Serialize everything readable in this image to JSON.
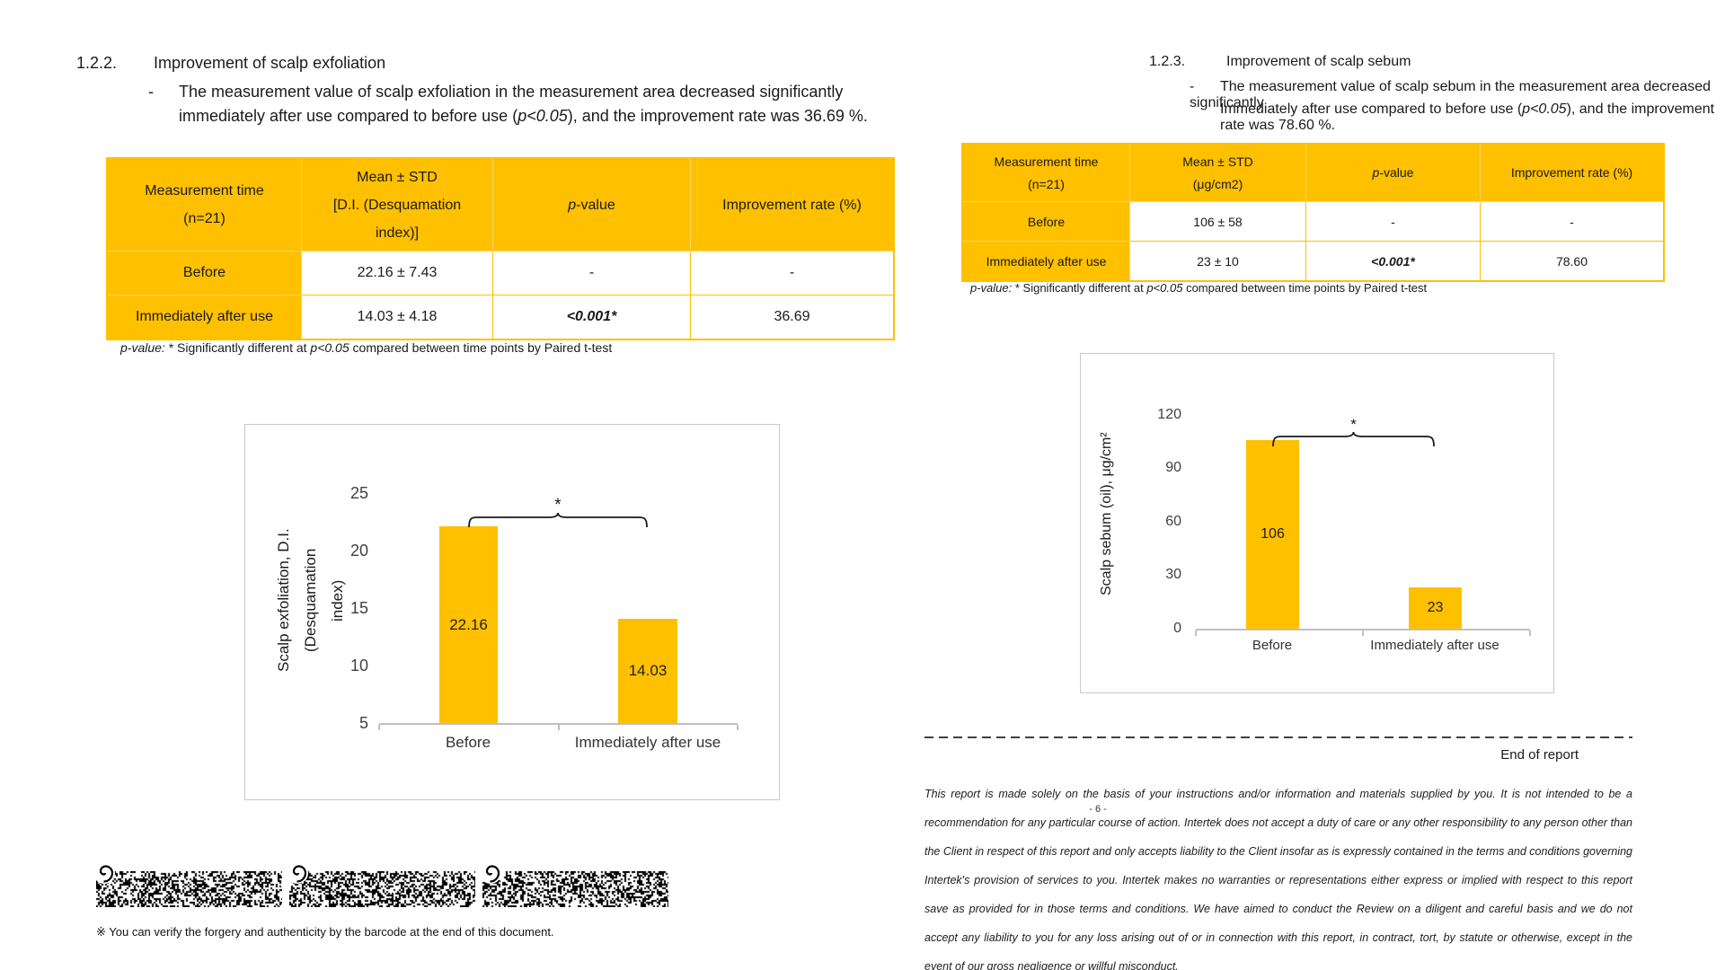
{
  "left_page": {
    "section_number": "1.2.2.",
    "section_title": "Improvement of scalp exfoliation",
    "bullet_dash": "-",
    "para_line1": "The measurement value of scalp exfoliation in the measurement area decreased significantly",
    "para_line2_pre": "immediately after use compared to before use (",
    "para_line2_italic": "p<0.05",
    "para_line2_post": "), and the improvement rate was 36.69 %.",
    "table": {
      "header_col1": "Measurement time\n(n=21)",
      "header_col2": "Mean ± STD\n[D.I. (Desquamation\nindex)]",
      "header_col3_italic": "p",
      "header_col3_rest": "-value",
      "header_col4": "Improvement rate (%)",
      "rows": [
        {
          "time": "Before",
          "mean": "22.16 ± 7.43",
          "p_value": "-",
          "rate": "-"
        },
        {
          "time": "Immediately after use",
          "mean": "14.03 ± 4.18",
          "p_value": "<0.001*",
          "rate": "36.69"
        }
      ]
    },
    "footnote_italic1": "p-value:",
    "footnote_mid": " * Significantly different at ",
    "footnote_italic2": "p<0.05",
    "footnote_rest": " compared between time points by Paired t-test",
    "barcode_note": "※ You can verify the forgery and authenticity by the barcode at the end of this document."
  },
  "right_page": {
    "section_number": "1.2.3.",
    "section_title": "Improvement of scalp sebum",
    "bullet_dash": "-",
    "para_line1": "The measurement value of scalp sebum in the measurement area decreased significantly",
    "para_line2_pre": "Immediately after use compared to before use (",
    "para_line2_italic": "p<0.05",
    "para_line2_post": "), and the improvement rate was 78.60 %.",
    "table": {
      "header_col1": "Measurement time\n(n=21)",
      "header_col2": "Mean ± STD\n(μg/cm2)",
      "header_col3_italic": "p",
      "header_col3_rest": "-value",
      "header_col4": "Improvement rate (%)",
      "rows": [
        {
          "time": "Before",
          "mean": "106 ± 58",
          "p_value": "-",
          "rate": "-"
        },
        {
          "time": "Immediately after use",
          "mean": "23 ± 10",
          "p_value": "<0.001*",
          "rate": "78.60"
        }
      ]
    },
    "footnote_italic1": "p-value:",
    "footnote_mid": " * Significantly different at ",
    "footnote_italic2": "p<0.05",
    "footnote_rest": " compared between time points by Paired t-test",
    "end_of_report": "End of report",
    "page_number": "- 6 -",
    "disclaimer": "This report is made solely on the basis of your instructions and/or information and materials supplied by you. It is not intended to be a recommendation for any particular course of action. Intertek does not accept a duty of care or any other responsibility to any person other than the Client in respect of this report and only accepts liability to the Client insofar as is expressly contained in the terms and conditions governing Intertek's provision of services to you. Intertek makes no warranties or representations either express or implied with respect to this report save as provided for in those terms and conditions. We have aimed to conduct the Review on a diligent and careful basis and we do not accept any liability to you for any loss arising out of or in connection with this report, in contract, tort, by statute or otherwise, except in the event of our gross negligence or willful misconduct."
  },
  "chart_data": [
    {
      "type": "bar",
      "title": "",
      "categories": [
        "Before",
        "Immediately after use"
      ],
      "values": [
        22.16,
        14.03
      ],
      "value_labels": [
        "22.16",
        "14.03"
      ],
      "xlabel": "",
      "ylabel": "Scalp exfoliation, D.I.(Desquamation\nindex)",
      "yticks": [
        5,
        10,
        15,
        20,
        25
      ],
      "ylim": [
        5,
        26.5
      ],
      "grid": false,
      "legend": false,
      "significance_marker": "*",
      "bar_color": "#FFC000"
    },
    {
      "type": "bar",
      "title": "",
      "categories": [
        "Before",
        "Immediately after use"
      ],
      "values": [
        106,
        23
      ],
      "value_labels": [
        "106",
        "23"
      ],
      "xlabel": "",
      "ylabel": "Scalp sebum (oil), μg/cm²",
      "yticks": [
        0,
        30,
        60,
        90,
        120
      ],
      "ylim": [
        0,
        130
      ],
      "grid": false,
      "legend": false,
      "significance_marker": "*",
      "bar_color": "#FFC000"
    }
  ],
  "colors": {
    "accent_orange": "#FFC000",
    "axis_gray": "#bfbfbf",
    "text": "#1a1a1a"
  }
}
